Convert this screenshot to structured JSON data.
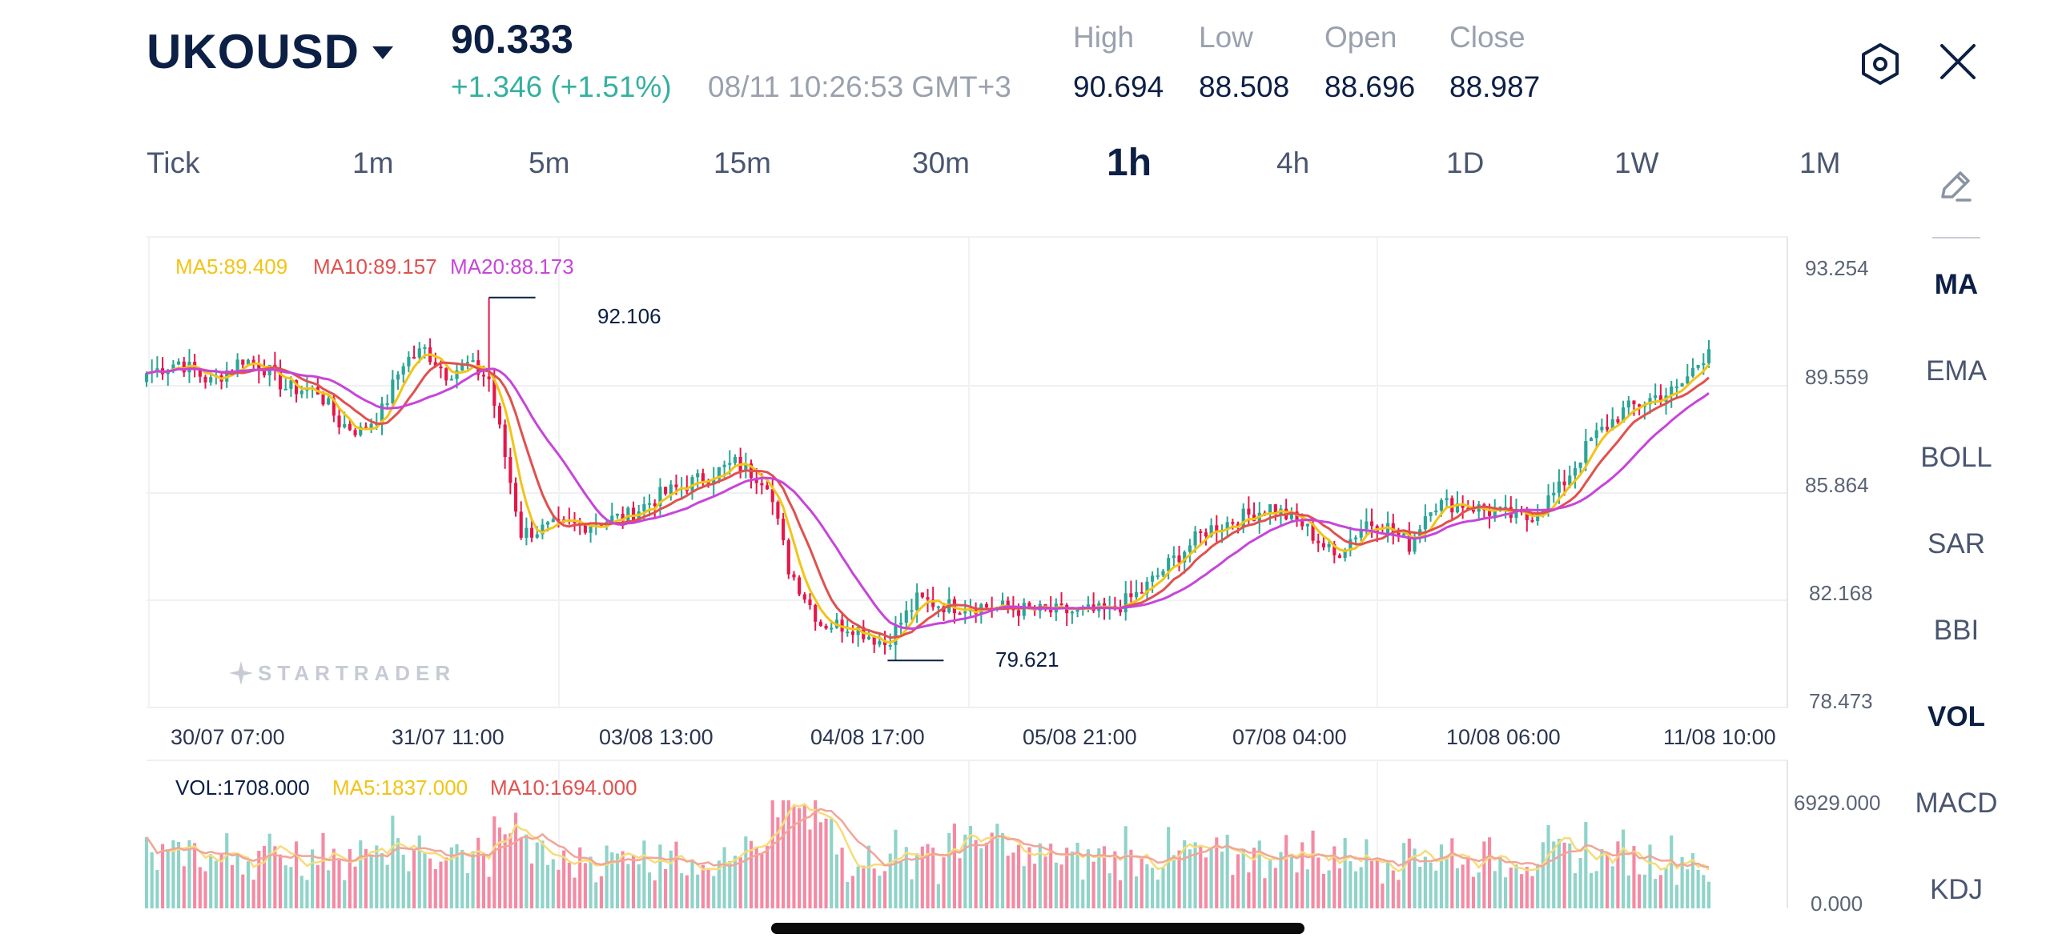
{
  "header": {
    "symbol": "UKOUSD",
    "price": "90.333",
    "change": "+1.346 (+1.51%)",
    "datetime": "08/11 10:26:53 GMT+3",
    "stats": [
      {
        "label": "High",
        "value": "90.694"
      },
      {
        "label": "Low",
        "value": "88.508"
      },
      {
        "label": "Open",
        "value": "88.696"
      },
      {
        "label": "Close",
        "value": "88.987"
      }
    ],
    "settings_icon": "hexagon-settings-icon",
    "close_icon": "close-icon"
  },
  "timeframes": [
    "Tick",
    "1m",
    "5m",
    "15m",
    "30m",
    "1h",
    "4h",
    "1D",
    "1W",
    "1M"
  ],
  "active_timeframe": "1h",
  "side_panel": {
    "draw_icon": "pencil-draw-icon",
    "indicators": [
      "MA",
      "EMA",
      "BOLL",
      "SAR",
      "BBI",
      "VOL",
      "MACD",
      "KDJ"
    ],
    "active_indicators": [
      "MA",
      "VOL"
    ]
  },
  "chart": {
    "ma_legend": {
      "ma5": "MA5:89.409",
      "ma10": "MA10:89.157",
      "ma20": "MA20:88.173"
    },
    "y_labels": [
      "93.254",
      "89.559",
      "85.864",
      "82.168",
      "78.473"
    ],
    "x_labels": [
      "30/07 07:00",
      "31/07 11:00",
      "03/08 13:00",
      "04/08 17:00",
      "05/08 21:00",
      "07/08 04:00",
      "10/08 06:00",
      "11/08 10:00"
    ],
    "high_marker": "92.106",
    "low_marker": "79.621",
    "watermark": "STARTRADER",
    "vol_legend": {
      "vol": "VOL:1708.000",
      "ma5": "MA5:1837.000",
      "ma10": "MA10:1694.000"
    },
    "vol_y_labels": [
      "6929.000",
      "0.000"
    ]
  },
  "colors": {
    "up": "#2aa597",
    "down": "#e5174a",
    "ma5": "#f2c417",
    "ma10": "#e0514f",
    "ma20": "#c745d9",
    "text_dark": "#0c1f44",
    "positive": "#35b0a0"
  },
  "chart_data": {
    "type": "candlestick",
    "interval": "1h",
    "ylim": [
      78.473,
      93.254
    ],
    "anchors": [
      [
        0,
        89.5
      ],
      [
        6,
        89.9
      ],
      [
        12,
        89.2
      ],
      [
        18,
        90.0
      ],
      [
        22,
        89.7
      ],
      [
        26,
        89.0
      ],
      [
        32,
        88.9
      ],
      [
        36,
        87.8
      ],
      [
        40,
        87.5
      ],
      [
        44,
        88.2
      ],
      [
        48,
        89.9
      ],
      [
        52,
        90.3
      ],
      [
        56,
        89.5
      ],
      [
        60,
        89.8
      ],
      [
        64,
        89.3
      ],
      [
        70,
        84.0
      ],
      [
        76,
        84.2
      ],
      [
        82,
        84.3
      ],
      [
        90,
        84.6
      ],
      [
        96,
        85.3
      ],
      [
        104,
        85.9
      ],
      [
        110,
        86.4
      ],
      [
        116,
        85.8
      ],
      [
        120,
        82.8
      ],
      [
        126,
        80.9
      ],
      [
        132,
        80.8
      ],
      [
        138,
        80.2
      ],
      [
        144,
        81.7
      ],
      [
        150,
        81.5
      ],
      [
        156,
        81.5
      ],
      [
        162,
        81.4
      ],
      [
        168,
        81.3
      ],
      [
        174,
        81.3
      ],
      [
        180,
        81.3
      ],
      [
        186,
        82.0
      ],
      [
        192,
        83.1
      ],
      [
        198,
        84.1
      ],
      [
        204,
        84.5
      ],
      [
        210,
        84.9
      ],
      [
        216,
        84.3
      ],
      [
        222,
        83.2
      ],
      [
        228,
        84.4
      ],
      [
        232,
        84.2
      ],
      [
        236,
        83.6
      ],
      [
        240,
        85.0
      ],
      [
        246,
        85.0
      ],
      [
        252,
        84.7
      ],
      [
        258,
        84.5
      ],
      [
        264,
        85.5
      ],
      [
        270,
        87.2
      ],
      [
        276,
        88.2
      ],
      [
        282,
        88.7
      ],
      [
        286,
        88.9
      ],
      [
        292,
        90.33
      ]
    ],
    "high": 92.106,
    "low": 79.621,
    "ma5_last": 89.409,
    "ma10_last": 89.157,
    "ma20_last": 88.173,
    "volume_ylim": [
      0,
      6929
    ],
    "volume_last": 1708,
    "volume_ma5_last": 1837,
    "volume_ma10_last": 1694
  }
}
